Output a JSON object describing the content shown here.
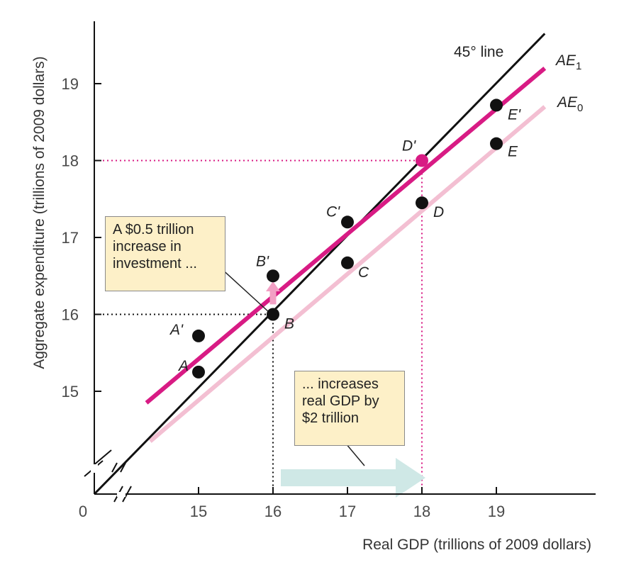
{
  "chart_data": {
    "type": "line",
    "xlabel": "Real GDP (trillions of 2009 dollars)",
    "ylabel": "Aggregate expenditure (trillions of 2009 dollars)",
    "origin_label": "0",
    "x_ticks": [
      "15",
      "16",
      "17",
      "18",
      "19"
    ],
    "y_ticks": [
      "15",
      "16",
      "17",
      "18",
      "19"
    ],
    "xlim": [
      14.3,
      20.1
    ],
    "ylim": [
      14.05,
      19.8
    ],
    "axis_breaks": true,
    "grid": false,
    "series": [
      {
        "name": "45° line",
        "color": "#111111",
        "x": [
          14.3,
          19.65
        ],
        "y": [
          14.3,
          19.65
        ]
      },
      {
        "name": "AE0",
        "color": "#f3bfd2",
        "x": [
          14.35,
          19.65
        ],
        "y": [
          14.35,
          18.7
        ],
        "points": [
          {
            "label": "A",
            "x": 15,
            "y": 15.25
          },
          {
            "label": "B",
            "x": 16,
            "y": 16
          },
          {
            "label": "C",
            "x": 17,
            "y": 16.67
          },
          {
            "label": "D",
            "x": 18,
            "y": 17.45
          },
          {
            "label": "E",
            "x": 19,
            "y": 18.22
          }
        ]
      },
      {
        "name": "AE1",
        "color": "#d81b84",
        "x": [
          14.3,
          19.65
        ],
        "y": [
          14.85,
          19.2
        ],
        "points": [
          {
            "label": "A'",
            "x": 15,
            "y": 15.72
          },
          {
            "label": "B'",
            "x": 16,
            "y": 16.5
          },
          {
            "label": "C'",
            "x": 17,
            "y": 17.2
          },
          {
            "label": "D'",
            "x": 18,
            "y": 18
          },
          {
            "label": "E'",
            "x": 19,
            "y": 18.72
          }
        ]
      }
    ],
    "guides": [
      {
        "x": 16,
        "y": 16,
        "color": "#111111"
      },
      {
        "x": 18,
        "y": 18,
        "color": "#d81b84"
      }
    ],
    "highlight_tick": {
      "x": "18",
      "y": "18",
      "color": "#d81b84"
    },
    "annotations": {
      "investment": "A $0.5 trillion\nincrease in\ninvestment ...",
      "gdp": "... increases\nreal GDP by\n$2 trillion"
    },
    "colors": {
      "axis": "#111111",
      "tick_text": "#4a4a4a",
      "arrow_pink": "#f2a0c4",
      "arrow_teal": "#cfe8e6",
      "note_fill": "#fdf0c8",
      "point": "#111111"
    }
  }
}
